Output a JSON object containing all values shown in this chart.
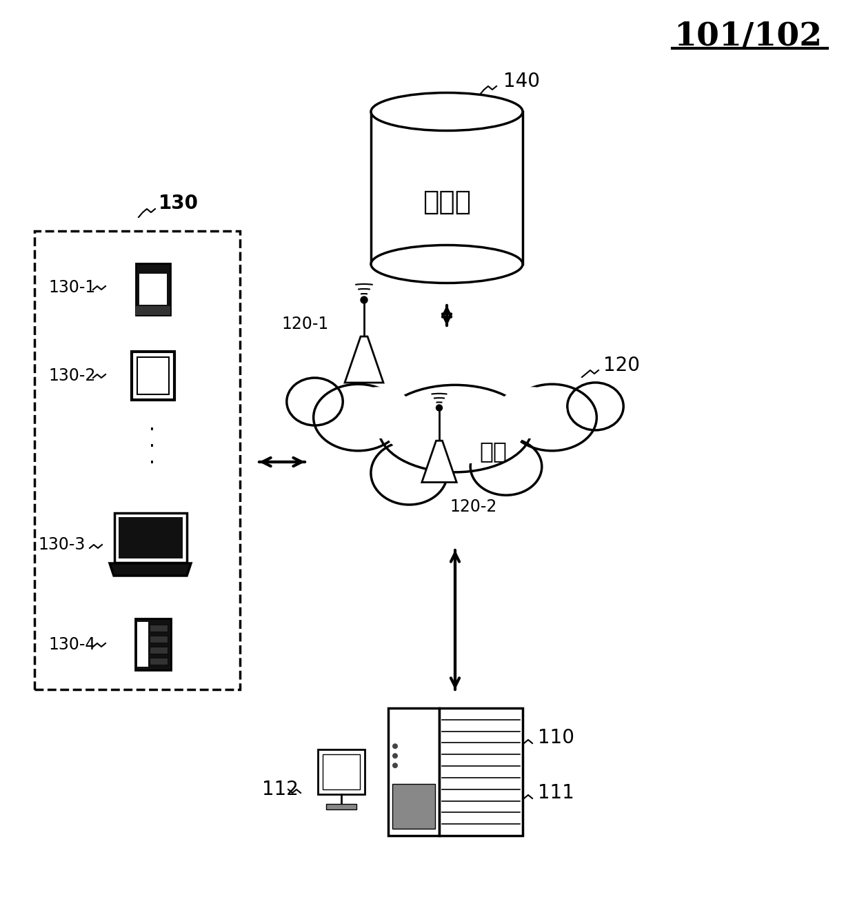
{
  "title": "101/102",
  "bg_color": "#ffffff",
  "label_140": "140",
  "label_storage": "存储器",
  "label_120": "120",
  "label_network": "网络",
  "label_120_1": "120-1",
  "label_120_2": "120-2",
  "label_130": "130",
  "label_130_1": "130-1",
  "label_130_2": "130-2",
  "label_130_3": "130-3",
  "label_130_4": "130-4",
  "label_110": "110",
  "label_111": "111",
  "label_112": "112",
  "figw": 12.4,
  "figh": 13.01,
  "dpi": 100
}
